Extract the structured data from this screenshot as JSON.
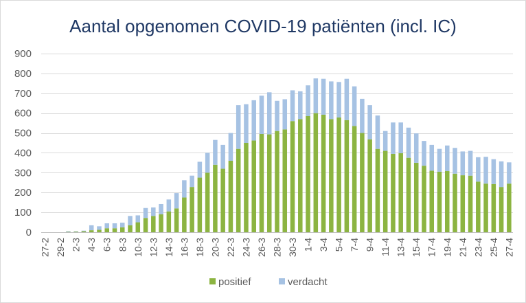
{
  "chart_data": {
    "type": "bar",
    "stacked": true,
    "title": "Aantal opgenomen COVID-19 patiënten (incl. IC)",
    "ylim": [
      0,
      900
    ],
    "y_ticks": [
      0,
      100,
      200,
      300,
      400,
      500,
      600,
      700,
      800,
      900
    ],
    "x_tick_labels": [
      "27-2",
      "29-2",
      "2-3",
      "4-3",
      "6-3",
      "8-3",
      "10-3",
      "12-3",
      "14-3",
      "16-3",
      "18-3",
      "20-3",
      "22-3",
      "24-3",
      "26-3",
      "28-3",
      "30-3",
      "1-4",
      "3-4",
      "5-4",
      "7-4",
      "9-4",
      "11-4",
      "13-4",
      "15-4",
      "17-4",
      "19-4",
      "21-4",
      "23-4",
      "25-4",
      "27-4"
    ],
    "series": [
      {
        "name": "positief",
        "color": "#8CB441",
        "values": [
          0,
          0,
          0,
          2,
          3,
          5,
          10,
          12,
          20,
          20,
          25,
          35,
          50,
          72,
          82,
          90,
          105,
          120,
          175,
          228,
          275,
          300,
          340,
          320,
          360,
          420,
          450,
          462,
          495,
          493,
          510,
          518,
          560,
          570,
          585,
          600,
          592,
          570,
          578,
          565,
          535,
          500,
          468,
          420,
          410,
          395,
          398,
          375,
          350,
          335,
          310,
          305,
          308,
          295,
          287,
          285,
          255,
          245,
          243,
          228,
          245
        ]
      },
      {
        "name": "verdacht",
        "color": "#A6C2E3",
        "values": [
          0,
          0,
          0,
          3,
          2,
          3,
          25,
          18,
          25,
          25,
          23,
          47,
          35,
          50,
          43,
          52,
          60,
          77,
          87,
          57,
          80,
          100,
          125,
          120,
          140,
          220,
          195,
          203,
          193,
          212,
          152,
          152,
          155,
          140,
          155,
          175,
          181,
          190,
          179,
          208,
          200,
          172,
          172,
          168,
          100,
          158,
          155,
          152,
          148,
          125,
          130,
          115,
          129,
          130,
          120,
          125,
          123,
          135,
          125,
          129,
          107
        ]
      }
    ],
    "grid": true,
    "legend_position": "bottom"
  }
}
